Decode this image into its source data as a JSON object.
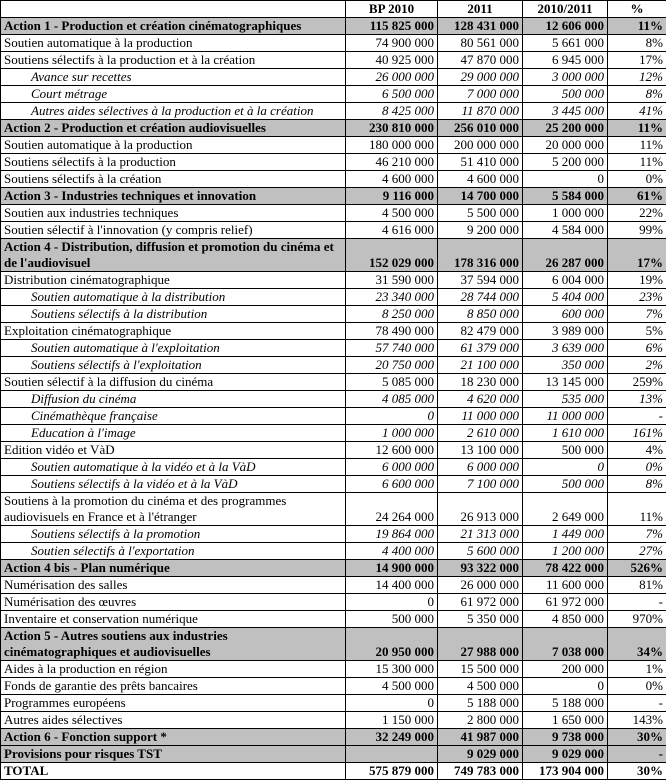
{
  "table": {
    "columns": [
      "",
      "BP 2010",
      "2011",
      "2010/2011",
      "%"
    ],
    "rows": [
      {
        "label": "Action 1 - Production et création cinématographiques",
        "style": "action",
        "values": [
          "115 825 000",
          "128 431 000",
          "12 606 000",
          "11%"
        ]
      },
      {
        "label": "Soutien automatique à la production",
        "style": "normal",
        "values": [
          "74 900 000",
          "80 561 000",
          "5 661 000",
          "8%"
        ]
      },
      {
        "label": "Soutiens sélectifs à la production et à la création",
        "style": "normal",
        "values": [
          "40 925 000",
          "47 870 000",
          "6 945 000",
          "17%"
        ]
      },
      {
        "label": "Avance sur recettes",
        "style": "sub",
        "values": [
          "26 000 000",
          "29 000 000",
          "3 000 000",
          "12%"
        ]
      },
      {
        "label": "Court métrage",
        "style": "sub",
        "values": [
          "6 500 000",
          "7 000 000",
          "500 000",
          "8%"
        ]
      },
      {
        "label": "Autres aides sélectives à la production et à la création",
        "style": "sub",
        "values": [
          "8 425 000",
          "11 870 000",
          "3 445 000",
          "41%"
        ]
      },
      {
        "label": "Action 2 - Production et création audiovisuelles",
        "style": "action",
        "values": [
          "230 810 000",
          "256 010 000",
          "25 200 000",
          "11%"
        ]
      },
      {
        "label": "Soutien automatique à la production",
        "style": "normal",
        "values": [
          "180 000 000",
          "200 000 000",
          "20 000 000",
          "11%"
        ]
      },
      {
        "label": "Soutiens sélectifs à la production",
        "style": "normal",
        "values": [
          "46 210 000",
          "51 410 000",
          "5 200 000",
          "11%"
        ]
      },
      {
        "label": "Soutiens sélectifs à la création",
        "style": "normal",
        "values": [
          "4 600 000",
          "4 600 000",
          "0",
          "0%"
        ]
      },
      {
        "label": "Action 3 - Industries techniques et innovation",
        "style": "action",
        "values": [
          "9 116 000",
          "14 700 000",
          "5 584 000",
          "61%"
        ]
      },
      {
        "label": "Soutien aux industries techniques",
        "style": "normal",
        "values": [
          "4 500 000",
          "5 500 000",
          "1 000 000",
          "22%"
        ]
      },
      {
        "label": "Soutien sélectif à l'innovation (y compris relief)",
        "style": "normal",
        "values": [
          "4 616 000",
          "9 200 000",
          "4 584 000",
          "99%"
        ]
      },
      {
        "label": "Action 4 - Distribution, diffusion et promotion du cinéma et de l'audiovisuel",
        "style": "action",
        "values": [
          "152 029 000",
          "178 316 000",
          "26 287 000",
          "17%"
        ]
      },
      {
        "label": "Distribution cinématographique",
        "style": "normal",
        "values": [
          "31 590 000",
          "37 594 000",
          "6 004 000",
          "19%"
        ]
      },
      {
        "label": "Soutien automatique à la distribution",
        "style": "sub",
        "values": [
          "23 340 000",
          "28 744 000",
          "5 404 000",
          "23%"
        ]
      },
      {
        "label": "Soutiens sélectifs à la distribution",
        "style": "sub",
        "values": [
          "8 250 000",
          "8 850 000",
          "600 000",
          "7%"
        ]
      },
      {
        "label": "Exploitation cinématographique",
        "style": "normal",
        "values": [
          "78 490 000",
          "82 479 000",
          "3 989 000",
          "5%"
        ]
      },
      {
        "label": "Soutien automatique à l'exploitation",
        "style": "sub",
        "values": [
          "57 740 000",
          "61 379 000",
          "3 639 000",
          "6%"
        ]
      },
      {
        "label": "Soutiens sélectifs à l'exploitation",
        "style": "sub",
        "values": [
          "20 750 000",
          "21 100 000",
          "350 000",
          "2%"
        ]
      },
      {
        "label": "Soutien sélectif à la diffusion du cinéma",
        "style": "normal",
        "values": [
          "5 085 000",
          "18 230 000",
          "13 145 000",
          "259%"
        ]
      },
      {
        "label": "Diffusion du cinéma",
        "style": "sub",
        "values": [
          "4 085 000",
          "4 620 000",
          "535 000",
          "13%"
        ]
      },
      {
        "label": "Cinémathèque française",
        "style": "sub",
        "values": [
          "0",
          "11 000 000",
          "11 000 000",
          "-"
        ]
      },
      {
        "label": "Education à l'image",
        "style": "sub",
        "values": [
          "1 000 000",
          "2 610 000",
          "1 610 000",
          "161%"
        ]
      },
      {
        "label": "Edition vidéo et VàD",
        "style": "normal",
        "values": [
          "12 600 000",
          "13 100 000",
          "500 000",
          "4%"
        ]
      },
      {
        "label": "Soutien automatique à la vidéo et à la VàD",
        "style": "sub",
        "values": [
          "6 000 000",
          "6 000 000",
          "0",
          "0%"
        ]
      },
      {
        "label": "Soutiens sélectifs à la vidéo et à la VàD",
        "style": "sub",
        "values": [
          "6 600 000",
          "7 100 000",
          "500 000",
          "8%"
        ]
      },
      {
        "label": "Soutiens à la promotion du cinéma et des programmes audiovisuels en France et à l'étranger",
        "style": "normal",
        "values": [
          "24 264 000",
          "26 913 000",
          "2 649 000",
          "11%"
        ]
      },
      {
        "label": "Soutiens sélectifs à la promotion",
        "style": "sub",
        "values": [
          "19 864 000",
          "21 313 000",
          "1 449 000",
          "7%"
        ]
      },
      {
        "label": "Soutien sélectifs à l'exportation",
        "style": "sub",
        "values": [
          "4 400 000",
          "5 600 000",
          "1 200 000",
          "27%"
        ]
      },
      {
        "label": "Action 4 bis - Plan numérique",
        "style": "action",
        "values": [
          "14 900 000",
          "93 322 000",
          "78 422 000",
          "526%"
        ]
      },
      {
        "label": "Numérisation des salles",
        "style": "normal",
        "values": [
          "14 400 000",
          "26 000 000",
          "11 600 000",
          "81%"
        ]
      },
      {
        "label": "Numérisation des œuvres",
        "style": "normal",
        "values": [
          "0",
          "61 972 000",
          "61 972 000",
          "-"
        ]
      },
      {
        "label": "Inventaire et conservation numérique",
        "style": "normal",
        "values": [
          "500 000",
          "5 350 000",
          "4 850 000",
          "970%"
        ]
      },
      {
        "label": "Action 5 - Autres soutiens aux industries cinématographiques et audiovisuelles",
        "style": "action",
        "values": [
          "20 950 000",
          "27 988 000",
          "7 038 000",
          "34%"
        ]
      },
      {
        "label": "Aides à la production en région",
        "style": "normal",
        "values": [
          "15 300 000",
          "15 500 000",
          "200 000",
          "1%"
        ]
      },
      {
        "label": "Fonds de garantie des prêts bancaires",
        "style": "normal",
        "values": [
          "4 500 000",
          "4 500 000",
          "0",
          "0%"
        ]
      },
      {
        "label": "Programmes européens",
        "style": "normal",
        "values": [
          "0",
          "5 188 000",
          "5 188 000",
          "-"
        ]
      },
      {
        "label": "Autres aides sélectives",
        "style": "normal",
        "values": [
          "1 150 000",
          "2 800 000",
          "1 650 000",
          "143%"
        ]
      },
      {
        "label": "Action 6 - Fonction support *",
        "style": "action",
        "values": [
          "32 249 000",
          "41 987 000",
          "9 738 000",
          "30%"
        ]
      },
      {
        "label": "Provisions pour risques TST",
        "style": "action",
        "values": [
          "",
          "9 029 000",
          "9 029 000",
          "-"
        ]
      },
      {
        "label": "TOTAL",
        "style": "total",
        "values": [
          "575 879 000",
          "749 783 000",
          "173 904 000",
          "30%"
        ]
      }
    ],
    "colors": {
      "action_row_bg": "#c0c0c0",
      "border": "#000000"
    }
  }
}
